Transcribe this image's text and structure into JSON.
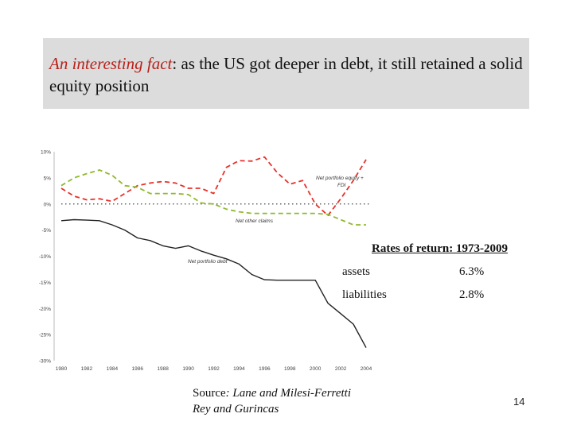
{
  "slide": {
    "title_highlight": "An interesting fact",
    "title_rest": ": as the US got deeper in debt, it still retained a solid equity position",
    "returns_title": "Rates of return: 1973-2009",
    "returns": [
      {
        "label": "assets",
        "value": "6.3%"
      },
      {
        "label": "liabilities",
        "value": "2.8%"
      }
    ],
    "source_label": "Source",
    "source_line1": ": Lane and Milesi-Ferretti",
    "source_line2": "Rey and Gurincas",
    "page_number": "14"
  },
  "chart_data": {
    "type": "line",
    "title": "",
    "xlabel": "",
    "ylabel": "",
    "xlim": [
      1980,
      2004
    ],
    "ylim": [
      -30,
      10
    ],
    "x_ticks": [
      "1980",
      "1982",
      "1984",
      "1986",
      "1988",
      "1990",
      "1992",
      "1994",
      "1996",
      "1998",
      "2000",
      "2002",
      "2004"
    ],
    "y_ticks": [
      {
        "value": 10,
        "label": "10%"
      },
      {
        "value": 5,
        "label": "5%"
      },
      {
        "value": 0,
        "label": "0%"
      },
      {
        "value": -5,
        "label": "-5%"
      },
      {
        "value": -10,
        "label": "-10%"
      },
      {
        "value": -15,
        "label": "-15%"
      },
      {
        "value": -20,
        "label": "-20%"
      },
      {
        "value": -25,
        "label": "-25%"
      },
      {
        "value": -30,
        "label": "-30%"
      }
    ],
    "zero_line": "dotted",
    "series": [
      {
        "name": "Net portfolio equity + FDI",
        "color": "#e8302a",
        "style": "dashed",
        "x": [
          1980,
          1981,
          1982,
          1983,
          1984,
          1985,
          1986,
          1987,
          1988,
          1989,
          1990,
          1991,
          1992,
          1993,
          1994,
          1995,
          1996,
          1997,
          1998,
          1999,
          2000,
          2001,
          2002,
          2003,
          2004
        ],
        "values": [
          3.0,
          1.5,
          0.8,
          1.0,
          0.5,
          2.0,
          3.5,
          4.0,
          4.3,
          4.0,
          3.0,
          3.0,
          2.0,
          7.0,
          8.3,
          8.2,
          9.0,
          6.0,
          3.8,
          4.5,
          0.0,
          -2.2,
          1.0,
          4.5,
          8.5
        ]
      },
      {
        "name": "Net other claims",
        "color": "#8fba2e",
        "style": "dashed",
        "x": [
          1980,
          1981,
          1982,
          1983,
          1984,
          1985,
          1986,
          1987,
          1988,
          1989,
          1990,
          1991,
          1992,
          1993,
          1994,
          1995,
          1996,
          1997,
          1998,
          1999,
          2000,
          2001,
          2002,
          2003,
          2004
        ],
        "values": [
          3.5,
          5.0,
          5.8,
          6.5,
          5.5,
          3.5,
          3.2,
          2.0,
          2.0,
          2.0,
          1.8,
          0.2,
          0.0,
          -1.0,
          -1.5,
          -1.8,
          -1.8,
          -1.8,
          -1.8,
          -1.8,
          -1.8,
          -2.0,
          -3.0,
          -4.0,
          -4.0
        ]
      },
      {
        "name": "Net portfolio debt",
        "color": "#222222",
        "style": "solid",
        "x": [
          1980,
          1981,
          1982,
          1983,
          1984,
          1985,
          1986,
          1987,
          1988,
          1989,
          1990,
          1991,
          1992,
          1993,
          1994,
          1995,
          1996,
          1997,
          1998,
          1999,
          2000,
          2001,
          2002,
          2003,
          2004
        ],
        "values": [
          -3.2,
          -3.0,
          -3.1,
          -3.2,
          -4.0,
          -5.0,
          -6.5,
          -7.0,
          -8.0,
          -8.5,
          -8.0,
          -9.0,
          -9.8,
          -10.5,
          -11.5,
          -13.5,
          -14.5,
          -14.6,
          -14.6,
          -14.6,
          -14.6,
          -19.0,
          -21.0,
          -23.0,
          -27.5
        ]
      }
    ],
    "annotations": [
      {
        "text": "Net portfolio equity +",
        "series": "Net portfolio equity + FDI"
      },
      {
        "text": "FDI",
        "series": "Net portfolio equity + FDI"
      },
      {
        "text": "Net other claims",
        "series": "Net other claims"
      },
      {
        "text": "Net portfolio debt",
        "series": "Net portfolio debt"
      }
    ]
  }
}
